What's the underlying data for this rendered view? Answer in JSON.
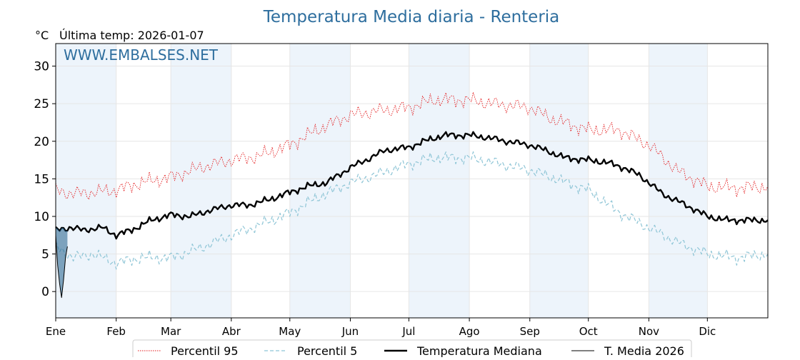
{
  "chart_data": {
    "type": "line",
    "title": "Temperatura Media diaria - Renteria",
    "unit_label": "°C",
    "last_temp_label": "Última temp: 2026-01-07",
    "watermark": "WWW.EMBALSES.NET",
    "xlabel": "",
    "ylabel": "",
    "x_range": [
      1,
      366
    ],
    "ylim": [
      -3.5,
      33
    ],
    "y_ticks": [
      0,
      5,
      10,
      15,
      20,
      25,
      30
    ],
    "month_labels": [
      "Ene",
      "Feb",
      "Mar",
      "Abr",
      "May",
      "Jun",
      "Jul",
      "Ago",
      "Sep",
      "Oct",
      "Nov",
      "Dic"
    ],
    "month_start_days": [
      1,
      32,
      60,
      91,
      121,
      152,
      182,
      213,
      244,
      274,
      305,
      335
    ],
    "shaded_months": [
      "Ene",
      "Mar",
      "May",
      "Jul",
      "Sep",
      "Nov"
    ],
    "grid": true,
    "legend_position": "bottom-center",
    "colors": {
      "title": "#2e6e9e",
      "watermark": "#2e6e9e",
      "p95": "#e31a1c",
      "p5": "#8ec5d6",
      "median": "#000000",
      "current": "#000000",
      "current_fill": "#1f5f8b",
      "month_band": "#edf4fb"
    },
    "series": [
      {
        "name": "Percentil 95",
        "style": "dotted",
        "anchors": [
          [
            1,
            13.5
          ],
          [
            10,
            13
          ],
          [
            20,
            13.2
          ],
          [
            32,
            13.5
          ],
          [
            45,
            14.5
          ],
          [
            60,
            15.2
          ],
          [
            75,
            16.5
          ],
          [
            91,
            17.5
          ],
          [
            105,
            18
          ],
          [
            121,
            19.5
          ],
          [
            135,
            21.5
          ],
          [
            152,
            23.5
          ],
          [
            165,
            24
          ],
          [
            182,
            24.5
          ],
          [
            195,
            25.5
          ],
          [
            213,
            25.5
          ],
          [
            225,
            25
          ],
          [
            244,
            24.5
          ],
          [
            255,
            23
          ],
          [
            274,
            21.5
          ],
          [
            290,
            21.5
          ],
          [
            305,
            19.5
          ],
          [
            320,
            16
          ],
          [
            335,
            14
          ],
          [
            350,
            13.8
          ],
          [
            366,
            14
          ]
        ]
      },
      {
        "name": "Percentil 5",
        "style": "dashed",
        "anchors": [
          [
            1,
            6
          ],
          [
            10,
            4.5
          ],
          [
            20,
            5
          ],
          [
            32,
            3.8
          ],
          [
            45,
            4.5
          ],
          [
            60,
            4.5
          ],
          [
            75,
            5.8
          ],
          [
            91,
            7.5
          ],
          [
            105,
            8.8
          ],
          [
            121,
            10.5
          ],
          [
            135,
            12.5
          ],
          [
            152,
            14.5
          ],
          [
            165,
            15.5
          ],
          [
            182,
            17
          ],
          [
            195,
            17.8
          ],
          [
            213,
            17.8
          ],
          [
            225,
            17.2
          ],
          [
            244,
            16.2
          ],
          [
            255,
            15.2
          ],
          [
            274,
            13.5
          ],
          [
            290,
            10.5
          ],
          [
            305,
            8.5
          ],
          [
            320,
            6.5
          ],
          [
            335,
            5
          ],
          [
            350,
            4.5
          ],
          [
            366,
            5
          ]
        ]
      },
      {
        "name": "Temperatura Mediana",
        "style": "solid-thick",
        "anchors": [
          [
            1,
            8.2
          ],
          [
            8,
            8.5
          ],
          [
            15,
            8.2
          ],
          [
            25,
            8.5
          ],
          [
            32,
            7.5
          ],
          [
            40,
            8.2
          ],
          [
            50,
            9.5
          ],
          [
            60,
            10.2
          ],
          [
            70,
            10
          ],
          [
            80,
            10.8
          ],
          [
            91,
            11.5
          ],
          [
            100,
            11.5
          ],
          [
            110,
            12.2
          ],
          [
            121,
            13.2
          ],
          [
            130,
            14
          ],
          [
            140,
            14.5
          ],
          [
            152,
            16.5
          ],
          [
            160,
            17.5
          ],
          [
            170,
            18.8
          ],
          [
            182,
            19.2
          ],
          [
            190,
            20
          ],
          [
            200,
            20.8
          ],
          [
            213,
            20.8
          ],
          [
            222,
            20.5
          ],
          [
            232,
            20
          ],
          [
            244,
            19.5
          ],
          [
            252,
            18.8
          ],
          [
            262,
            17.8
          ],
          [
            274,
            17.5
          ],
          [
            283,
            17.2
          ],
          [
            292,
            16.5
          ],
          [
            300,
            15.5
          ],
          [
            305,
            14.5
          ],
          [
            312,
            13
          ],
          [
            320,
            12
          ],
          [
            328,
            11
          ],
          [
            335,
            10
          ],
          [
            345,
            9.5
          ],
          [
            355,
            9.5
          ],
          [
            366,
            9.5
          ]
        ]
      },
      {
        "name": "T. Media 2026",
        "style": "solid-thin",
        "x": [
          1,
          2,
          3,
          4,
          5,
          6,
          7
        ],
        "values": [
          7.5,
          3.5,
          1.0,
          -0.8,
          1.5,
          4.5,
          6.0
        ]
      }
    ]
  }
}
